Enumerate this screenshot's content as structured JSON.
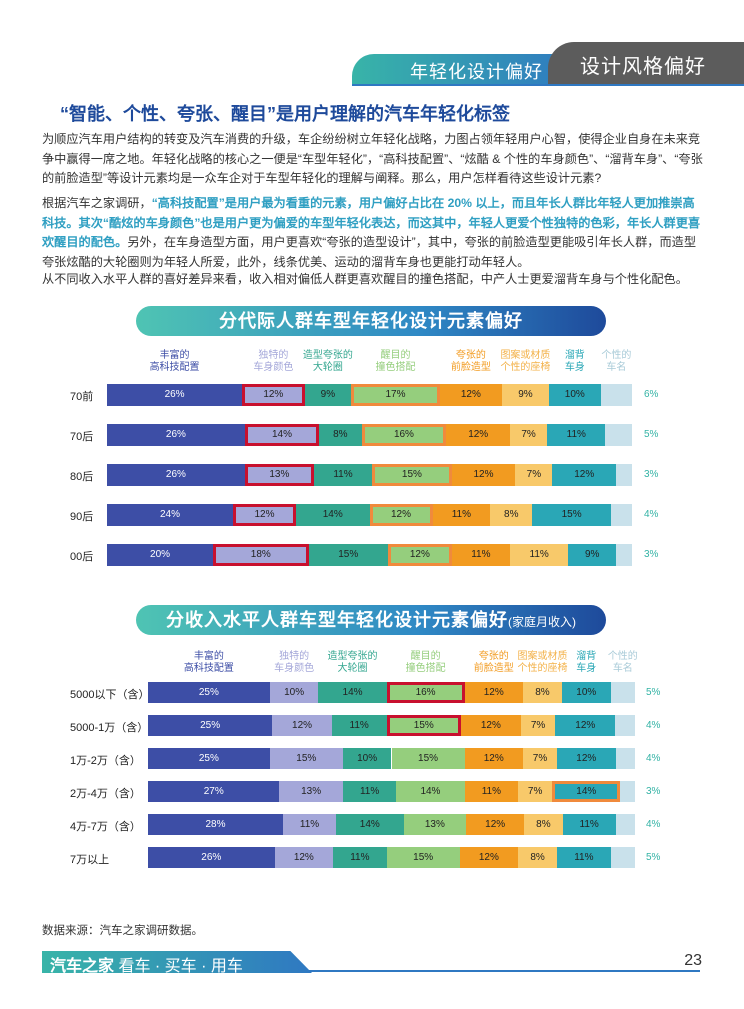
{
  "header": {
    "section": "年轻化设计偏好",
    "chapter": "设计风格偏好"
  },
  "headline": "“智能、个性、夸张、醒目”是用户理解的汽车年轻化标签",
  "paragraphs": {
    "p1": "为顺应汽车用户结构的转变及汽车消费的升级，车企纷纷树立年轻化战略，力图占领年轻用户心智，使得企业自身在未来竞争中赢得一席之地。年轻化战略的核心之一便是“车型年轻化”，“高科技配置”、“炫酷 & 个性的车身颜色”、“溜背车身”、“夸张的前脸造型”等设计元素均是一众车企对于车型年轻化的理解与阐释。那么，用户怎样看待这些设计元素?",
    "p2_a": "根据汽车之家调研，",
    "p2_hl": "“高科技配置”是用户最为看重的元素，用户偏好占比在 20% 以上，而且年长人群比年轻人更加推崇高科技。其次“酷炫的车身颜色”也是用户更为偏爱的车型年轻化表达，而这其中，年轻人更爱个性独特的色彩，年长人群更喜欢醒目的配色。",
    "p2_b": "另外，在车身造型方面，用户更喜欢“夸张的造型设计”，其中，夸张的前脸造型更能吸引年长人群，而造型夸张炫酷的大轮圈则为年轻人所爱，此外，线条优美、运动的溜背车身也更能打动年轻人。",
    "p3": "从不同收入水平人群的喜好差异来看，收入相对偏低人群更喜欢醒目的撞色搭配，中产人士更爱溜背车身与个性化配色。"
  },
  "colors": {
    "c1": "#3d4ea6",
    "c2": "#a4a7d9",
    "c3": "#33a68f",
    "c4": "#95ce7d",
    "c5": "#f29b20",
    "c6": "#f8c96a",
    "c7": "#2aa7b6",
    "c8": "#c9e1eb",
    "red": "#c8102e",
    "orange": "#f08a3c"
  },
  "chart_data": [
    {
      "type": "bar",
      "stacked": true,
      "orientation": "horizontal",
      "title": "分代际人群车型年轻化设计元素偏好",
      "legend": [
        "丰富的高科技配置",
        "独特的车身颜色",
        "造型夸张的大轮圈",
        "醒目的撞色搭配",
        "夸张的前脸造型",
        "图案或材质个性的座椅",
        "溜背车身",
        "个性的车名"
      ],
      "legend_lines": [
        [
          "丰富的",
          "高科技配置"
        ],
        [
          "独特的",
          "车身颜色"
        ],
        [
          "造型夸张的",
          "大轮圈"
        ],
        [
          "醒目的",
          "撞色搭配"
        ],
        [
          "夸张的",
          "前脸造型"
        ],
        [
          "图案或材质",
          "个性的座椅"
        ],
        [
          "溜背",
          "车身"
        ],
        [
          "个性的",
          "车名"
        ]
      ],
      "categories": [
        "70前",
        "70后",
        "80后",
        "90后",
        "00后"
      ],
      "series": [
        {
          "name": "丰富的高科技配置",
          "values": [
            26,
            26,
            26,
            24,
            20
          ]
        },
        {
          "name": "独特的车身颜色",
          "values": [
            12,
            14,
            13,
            12,
            18
          ]
        },
        {
          "name": "造型夸张的大轮圈",
          "values": [
            9,
            8,
            11,
            14,
            15
          ]
        },
        {
          "name": "醒目的撞色搭配",
          "values": [
            17,
            16,
            15,
            12,
            12
          ]
        },
        {
          "name": "夸张的前脸造型",
          "values": [
            12,
            12,
            12,
            11,
            11
          ]
        },
        {
          "name": "图案或材质个性的座椅",
          "values": [
            9,
            7,
            7,
            8,
            11
          ]
        },
        {
          "name": "溜背车身",
          "values": [
            10,
            11,
            12,
            15,
            9
          ]
        },
        {
          "name": "个性的车名",
          "values": [
            6,
            5,
            3,
            4,
            3
          ]
        }
      ],
      "highlights": [
        [
          1,
          "red"
        ],
        [
          3,
          "orange"
        ]
      ],
      "unit": "%"
    },
    {
      "type": "bar",
      "stacked": true,
      "orientation": "horizontal",
      "title": "分收入水平人群车型年轻化设计元素偏好",
      "subtitle": "(家庭月收入)",
      "legend": [
        "丰富的高科技配置",
        "独特的车身颜色",
        "造型夸张的大轮圈",
        "醒目的撞色搭配",
        "夸张的前脸造型",
        "图案或材质个性的座椅",
        "溜背车身",
        "个性的车名"
      ],
      "legend_lines": [
        [
          "丰富的",
          "高科技配置"
        ],
        [
          "独特的",
          "车身颜色"
        ],
        [
          "造型夸张的",
          "大轮圈"
        ],
        [
          "醒目的",
          "撞色搭配"
        ],
        [
          "夸张的",
          "前脸造型"
        ],
        [
          "图案或材质",
          "个性的座椅"
        ],
        [
          "溜背",
          "车身"
        ],
        [
          "个性的",
          "车名"
        ]
      ],
      "categories": [
        "5000以下（含）",
        "5000-1万（含）",
        "1万-2万（含）",
        "2万-4万（含）",
        "4万-7万（含）",
        "7万以上"
      ],
      "series": [
        {
          "name": "丰富的高科技配置",
          "values": [
            25,
            25,
            25,
            27,
            28,
            26
          ]
        },
        {
          "name": "独特的车身颜色",
          "values": [
            10,
            12,
            15,
            13,
            11,
            12
          ]
        },
        {
          "name": "造型夸张的大轮圈",
          "values": [
            14,
            11,
            10,
            11,
            14,
            11
          ]
        },
        {
          "name": "醒目的撞色搭配",
          "values": [
            16,
            15,
            15,
            14,
            13,
            15
          ]
        },
        {
          "name": "夸张的前脸造型",
          "values": [
            12,
            12,
            12,
            11,
            12,
            12
          ]
        },
        {
          "name": "图案或材质个性的座椅",
          "values": [
            8,
            7,
            7,
            7,
            8,
            8
          ]
        },
        {
          "name": "溜背车身",
          "values": [
            10,
            12,
            12,
            14,
            11,
            11
          ]
        },
        {
          "name": "个性的车名",
          "values": [
            5,
            4,
            4,
            3,
            4,
            5
          ]
        }
      ],
      "highlights": [
        [
          3,
          "red",
          0,
          1
        ],
        [
          6,
          "orange",
          3
        ]
      ],
      "unit": "%"
    }
  ],
  "source": "数据来源：汽车之家调研数据。",
  "footer": {
    "brand": "汽车之家",
    "slogan": " 看车 · 买车 · 用车",
    "page": "23"
  }
}
